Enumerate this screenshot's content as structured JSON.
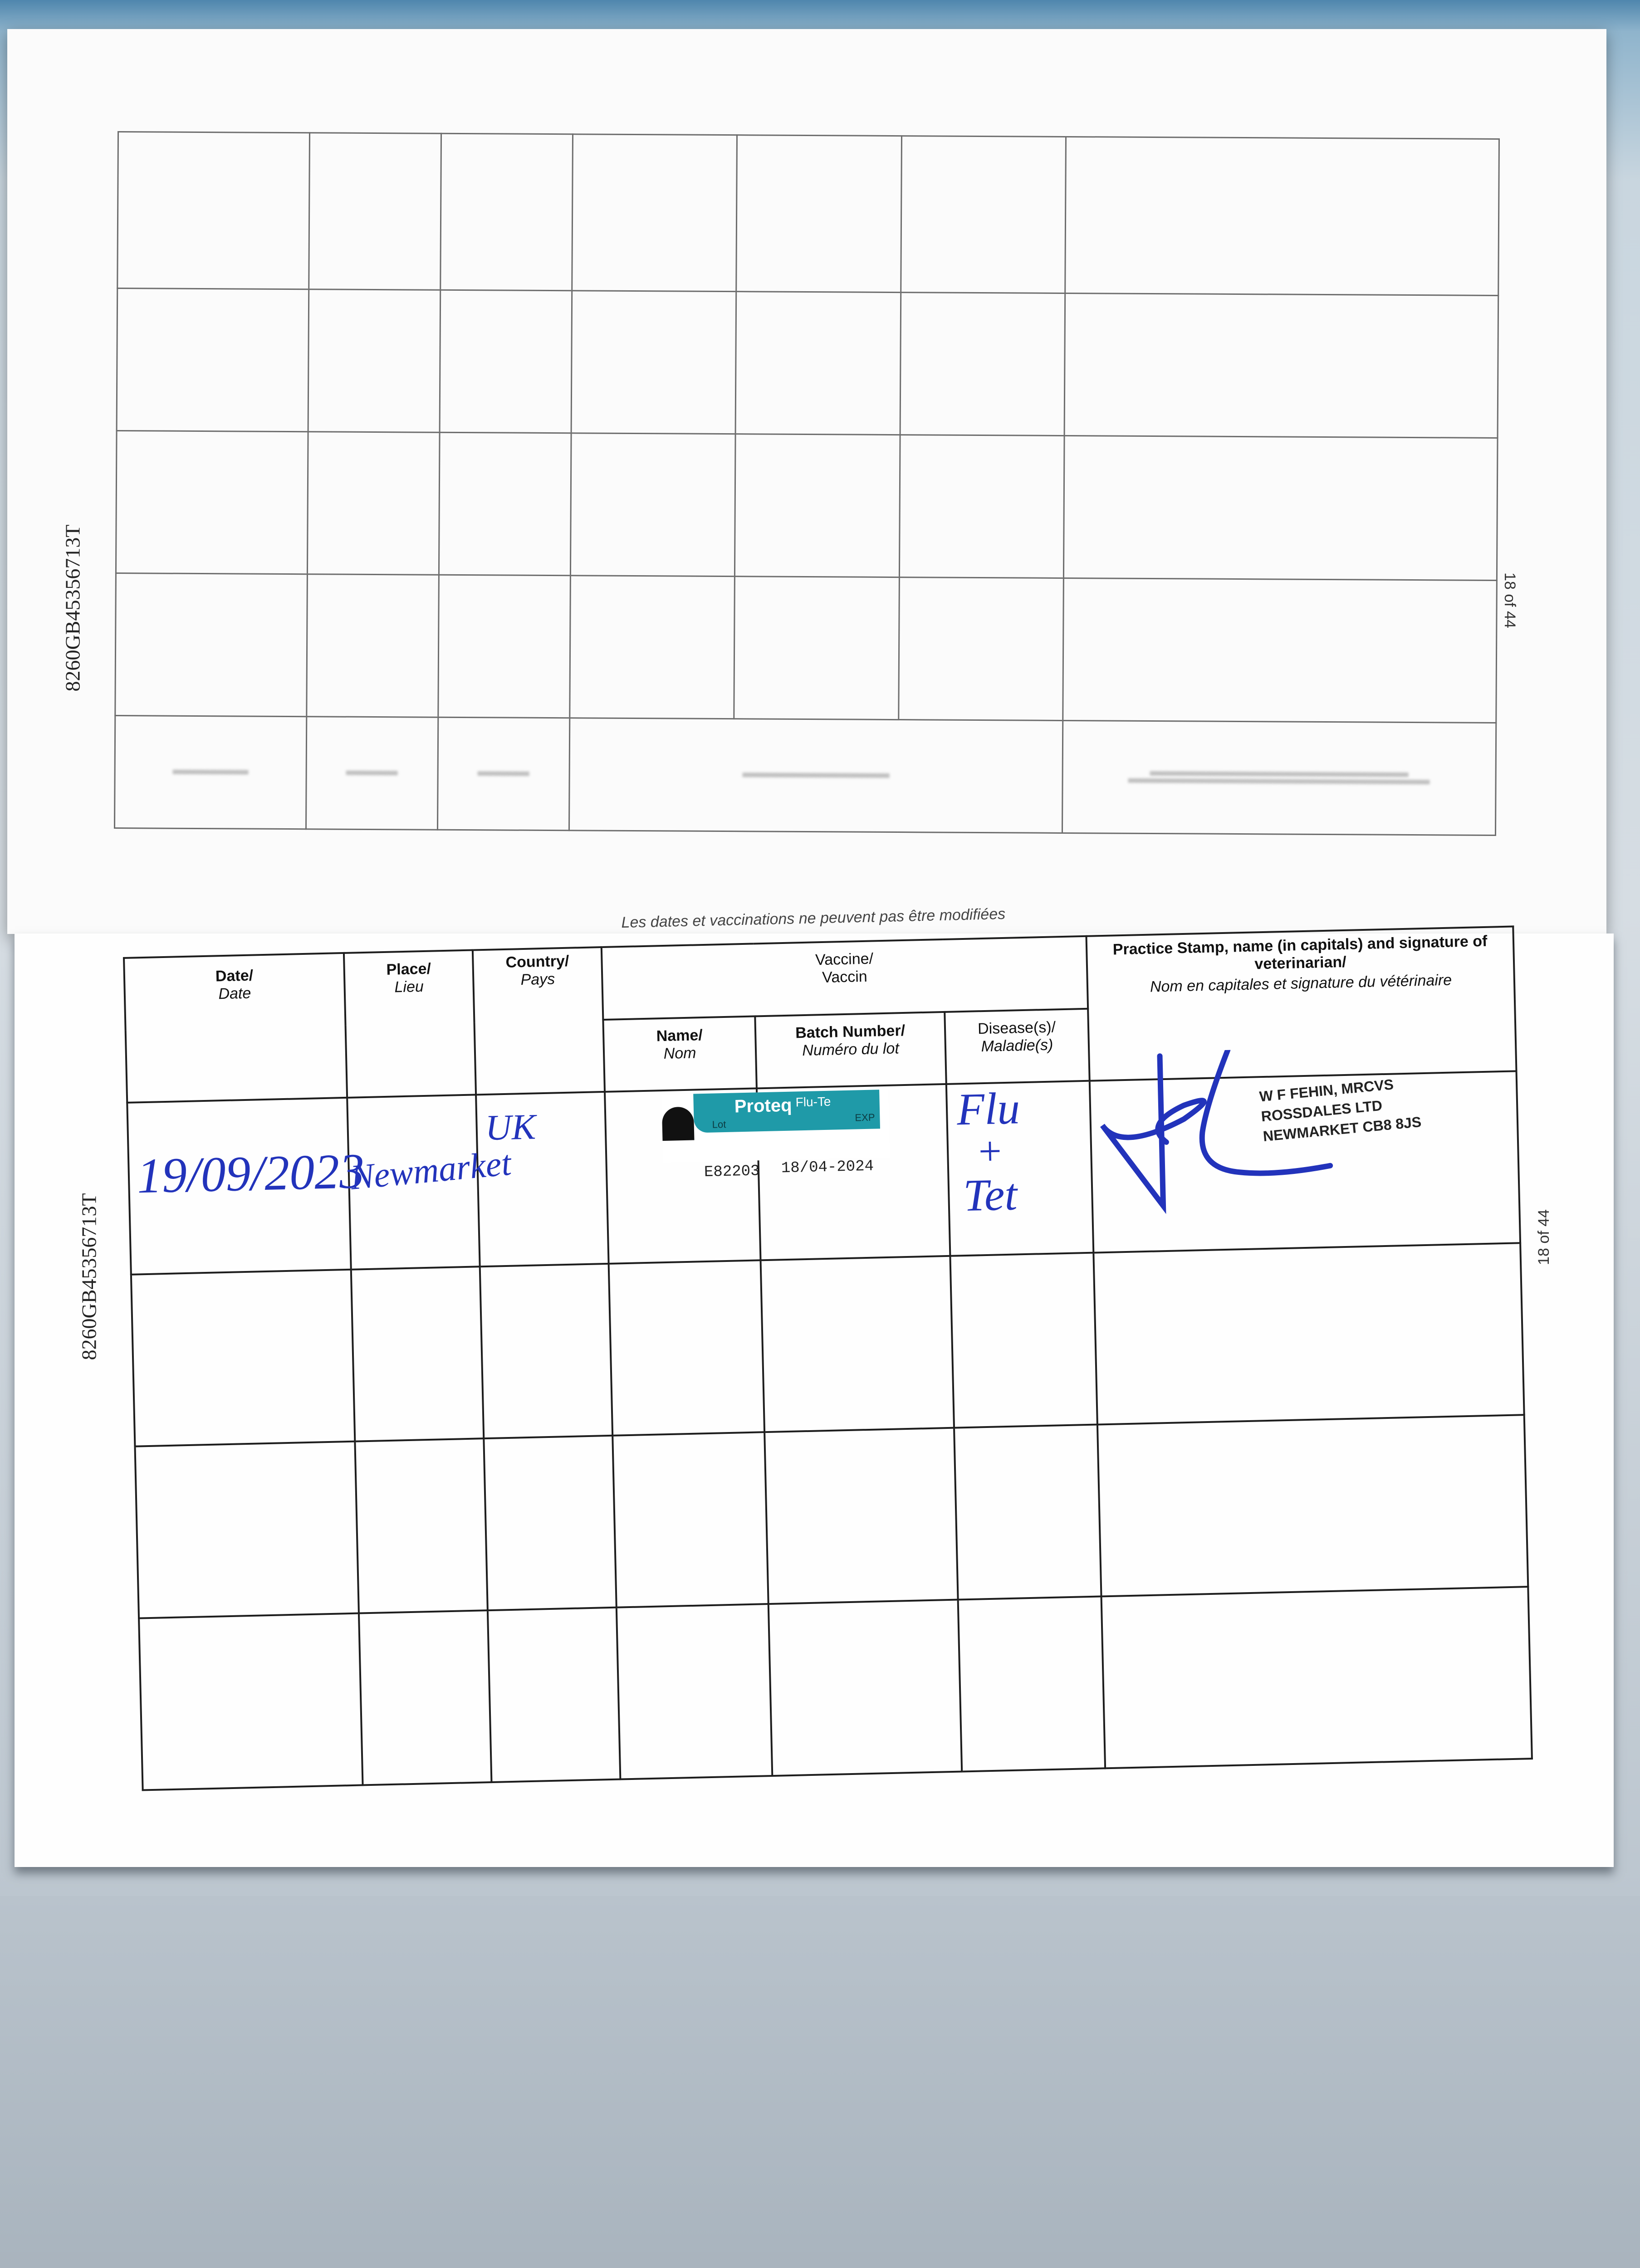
{
  "document": {
    "passport_number": "8260GB45356713T",
    "page_number": "18 of 44"
  },
  "notice": "Les dates et vaccinations ne peuvent pas être modifiées",
  "table_headers": {
    "date": {
      "en": "Date/",
      "fr": "Date"
    },
    "place": {
      "en": "Place/",
      "fr": "Lieu"
    },
    "country": {
      "en": "Country/",
      "fr": "Pays"
    },
    "vaccine": {
      "en": "Vaccine/",
      "fr": "Vaccin"
    },
    "name": {
      "en": "Name/",
      "fr": "Nom"
    },
    "batch": {
      "en": "Batch Number/",
      "fr": "Numéro du lot"
    },
    "disease": {
      "en": "Disease(s)/",
      "fr": "Maladie(s)"
    },
    "stamp": {
      "en": "Practice Stamp, name (in capitals) and signature of veterinarian/",
      "fr": "Nom en capitales et signature du vétérinaire"
    }
  },
  "entries": [
    {
      "date": "19/09/2023",
      "place": "Newmarket",
      "country": "UK",
      "vaccine_label": {
        "brand": "Proteq",
        "product": "Flu-Te",
        "lot_label": "Lot",
        "exp_label": "EXP",
        "color": "#1f9aa8"
      },
      "batch": "E82203",
      "expiry": "18/04-2024",
      "disease_line1": "Flu",
      "disease_plus": "+",
      "disease_line2": "Tet",
      "stamp": [
        "W F FEHIN, MRCVS",
        "ROSSDALES LTD",
        "NEWMARKET CB8 8JS"
      ]
    }
  ],
  "colors": {
    "ink": "#2233bb",
    "label": "#1f9aa8"
  }
}
